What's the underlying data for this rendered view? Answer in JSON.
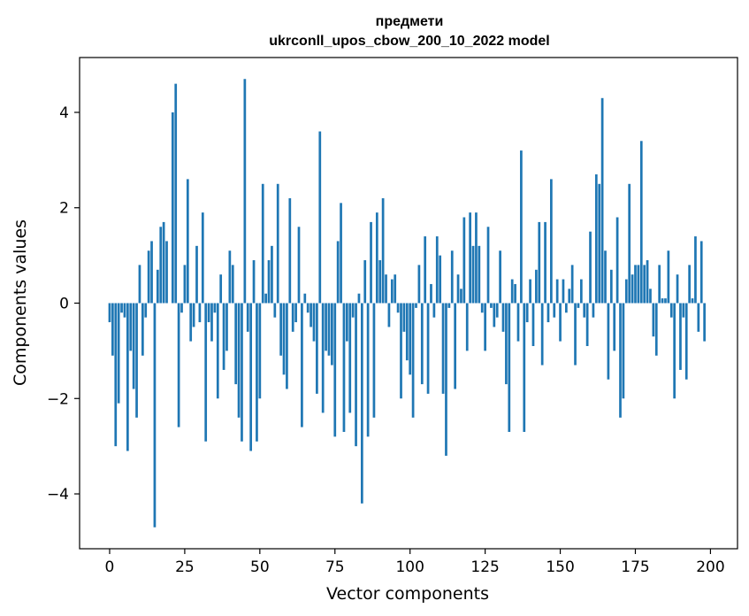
{
  "chart_data": {
    "type": "bar",
    "title": "предмети",
    "subtitle": "ukrconll_upos_cbow_200_10_2022 model",
    "xlabel": "Vector components",
    "ylabel": "Components values",
    "xlim": [
      -10,
      209
    ],
    "ylim": [
      -5.15,
      5.15
    ],
    "x_ticks": [
      0,
      25,
      50,
      75,
      100,
      125,
      150,
      175,
      200
    ],
    "y_ticks": [
      -4,
      -2,
      0,
      2,
      4
    ],
    "y_tick_labels": [
      "−4",
      "−2",
      "0",
      "2",
      "4"
    ],
    "bar_color": "#1f77b4",
    "grid": false,
    "values": [
      -0.4,
      -1.1,
      -3.0,
      -2.1,
      -0.2,
      -0.3,
      -3.1,
      -1.0,
      -1.8,
      -2.4,
      0.8,
      -1.1,
      -0.3,
      1.1,
      1.3,
      -4.7,
      0.7,
      1.6,
      1.7,
      1.3,
      0.0,
      4.0,
      4.6,
      -2.6,
      -0.2,
      0.8,
      2.6,
      -0.8,
      -0.5,
      1.2,
      -0.4,
      1.9,
      -2.9,
      -0.4,
      -0.8,
      -0.2,
      -2.0,
      0.6,
      -1.4,
      -1.0,
      1.1,
      0.8,
      -1.7,
      -2.4,
      -2.9,
      4.7,
      -0.6,
      -3.1,
      0.9,
      -2.9,
      -2.0,
      2.5,
      0.2,
      0.9,
      1.2,
      -0.3,
      2.5,
      -1.1,
      -1.5,
      -1.8,
      2.2,
      -0.6,
      -0.4,
      1.6,
      -2.6,
      0.2,
      -0.2,
      -0.5,
      -0.8,
      -1.9,
      3.6,
      -2.3,
      -1.0,
      -1.1,
      -1.3,
      -2.8,
      1.3,
      2.1,
      -2.7,
      -0.8,
      -2.3,
      -0.3,
      -3.0,
      0.2,
      -4.2,
      0.9,
      -2.8,
      1.7,
      -2.4,
      1.9,
      0.9,
      2.2,
      0.6,
      -0.5,
      0.5,
      0.6,
      -0.2,
      -2.0,
      -0.6,
      -1.2,
      -1.5,
      -2.4,
      -0.1,
      0.8,
      -1.7,
      1.4,
      -1.9,
      0.4,
      -0.3,
      1.4,
      1.0,
      -1.9,
      -3.2,
      -0.1,
      1.1,
      -1.8,
      0.6,
      0.3,
      1.8,
      -1.0,
      1.9,
      1.2,
      1.9,
      1.2,
      -0.2,
      -1.0,
      1.6,
      -0.1,
      -0.5,
      -0.3,
      1.1,
      -0.6,
      -1.7,
      -2.7,
      0.5,
      0.4,
      -0.8,
      3.2,
      -2.7,
      -0.4,
      0.5,
      -0.9,
      0.7,
      1.7,
      -1.3,
      1.7,
      -0.4,
      2.6,
      -0.3,
      0.5,
      -0.8,
      0.5,
      -0.2,
      0.3,
      0.8,
      -1.3,
      -0.1,
      0.5,
      -0.3,
      -0.9,
      1.5,
      -0.3,
      2.7,
      2.5,
      4.3,
      1.1,
      -1.6,
      0.7,
      -1.0,
      1.8,
      -2.4,
      -2.0,
      0.5,
      2.5,
      0.6,
      0.8,
      0.8,
      3.4,
      0.8,
      0.9,
      0.3,
      -0.7,
      -1.1,
      0.8,
      0.1,
      0.1,
      1.1,
      -0.3,
      -2.0,
      0.6,
      -1.4,
      -0.3,
      -1.6,
      0.8,
      0.1,
      1.4,
      -0.6,
      1.3,
      -0.8
    ]
  }
}
